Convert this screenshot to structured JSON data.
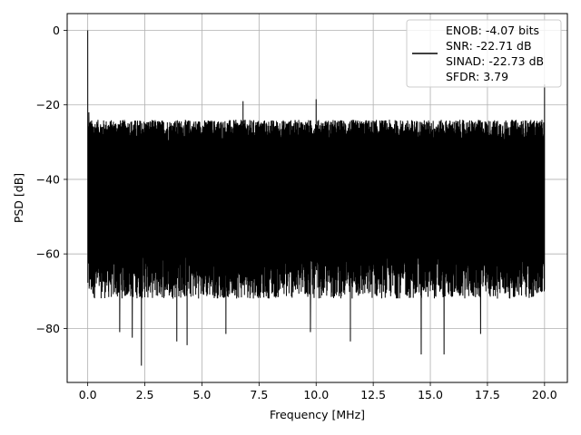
{
  "chart_data": {
    "type": "line",
    "title": "",
    "xlabel": "Frequency [MHz]",
    "ylabel": "PSD [dB]",
    "xlim": [
      -0.9,
      21.0
    ],
    "ylim": [
      -94.5,
      4.5
    ],
    "xticks": [
      0.0,
      2.5,
      5.0,
      7.5,
      10.0,
      12.5,
      15.0,
      17.5,
      20.0
    ],
    "xtick_labels": [
      "0.0",
      "2.5",
      "5.0",
      "7.5",
      "10.0",
      "12.5",
      "15.0",
      "17.5",
      "20.0"
    ],
    "yticks": [
      0,
      -20,
      -40,
      -60,
      -80
    ],
    "ytick_labels": [
      "0",
      "−20",
      "−40",
      "−60",
      "−80"
    ],
    "grid": true,
    "legend_position": "upper right",
    "line_color": "#000000",
    "series": [
      {
        "name": "ENOB: -4.07 bits\nSNR: -22.71 dB\nSINAD: -22.73 dB\nSFDR: 3.79",
        "legend_lines": [
          "ENOB: -4.07 bits",
          "SNR: -22.71 dB",
          "SINAD: -22.73 dB",
          "SFDR: 3.79"
        ],
        "x_range": [
          0.0,
          20.0
        ],
        "noise_upper_band_db": [
          -30,
          -24
        ],
        "noise_lower_band_db": [
          -72,
          -58
        ],
        "peaks": [
          {
            "x": 0.0,
            "y": 0.0
          },
          {
            "x": 0.05,
            "y": -22.0
          },
          {
            "x": 6.8,
            "y": -19.0
          },
          {
            "x": 10.0,
            "y": -18.5
          },
          {
            "x": 20.0,
            "y": -14.5
          }
        ],
        "deep_nulls": [
          {
            "x": 1.4,
            "y": -81.0
          },
          {
            "x": 1.95,
            "y": -82.5
          },
          {
            "x": 2.35,
            "y": -90.0
          },
          {
            "x": 3.9,
            "y": -83.5
          },
          {
            "x": 4.35,
            "y": -84.5
          },
          {
            "x": 6.05,
            "y": -81.5
          },
          {
            "x": 9.75,
            "y": -81.0
          },
          {
            "x": 11.5,
            "y": -83.5
          },
          {
            "x": 14.6,
            "y": -87.0
          },
          {
            "x": 15.6,
            "y": -87.0
          },
          {
            "x": 17.2,
            "y": -81.5
          }
        ]
      }
    ]
  }
}
